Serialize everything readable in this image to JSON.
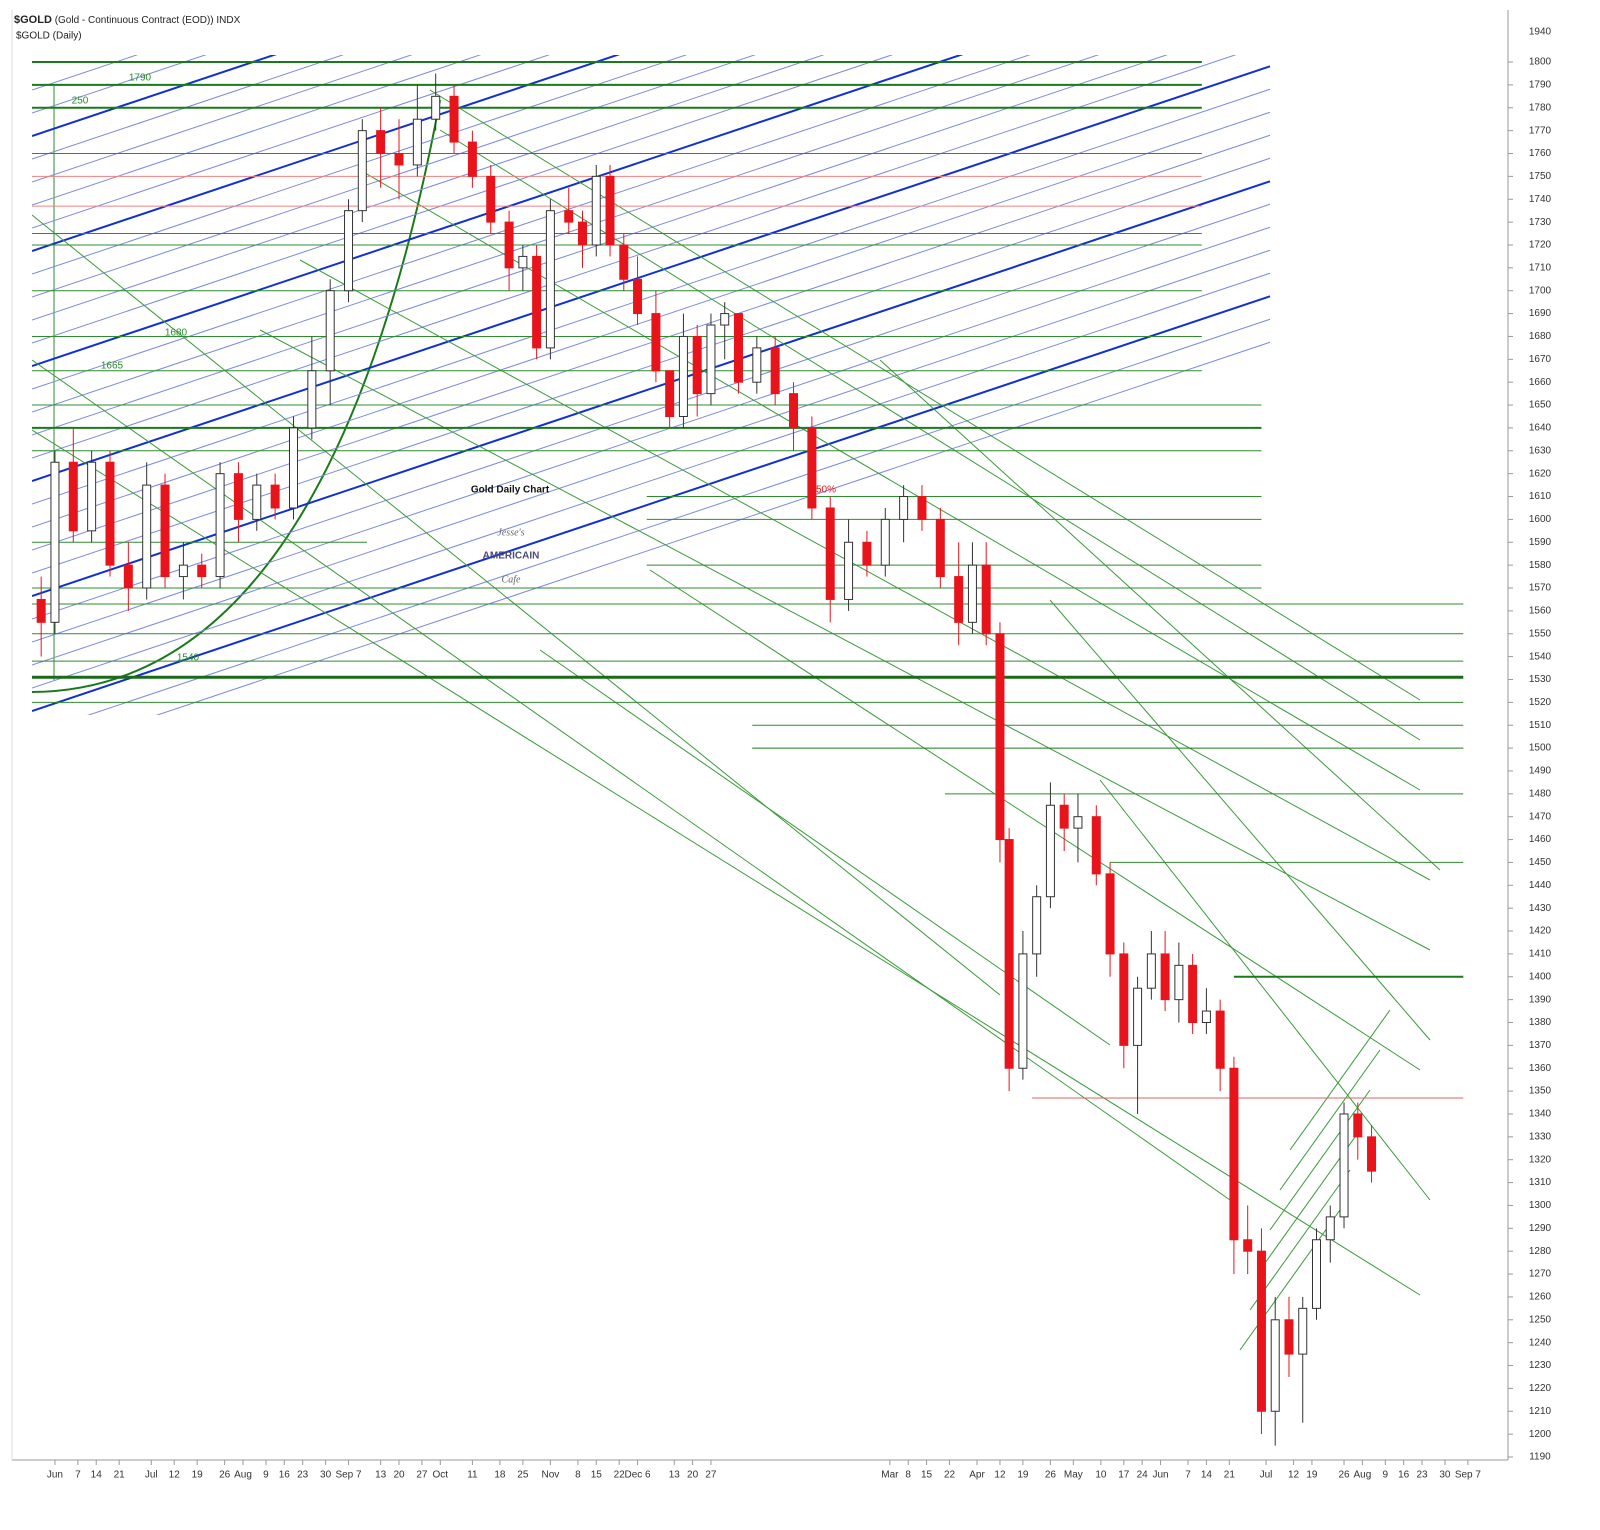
{
  "chart_data": {
    "type": "candlestick",
    "title": "$GOLD",
    "subtitle": "(Gold - Continuous Contract (EOD)) INDX",
    "series_label": "$GOLD (Daily)",
    "annotation": "Gold Daily Chart",
    "logo": {
      "top": "Jesse's",
      "middle": "AMERICAIN",
      "bottom": "Cafe"
    },
    "axis_top_label": "1940",
    "text_labels": [
      "1790",
      "250",
      "1680",
      "1665",
      "1540",
      "50%"
    ],
    "ylim": [
      1190,
      1820
    ],
    "yticks": [
      1190,
      1200,
      1210,
      1220,
      1230,
      1240,
      1250,
      1260,
      1270,
      1280,
      1290,
      1300,
      1310,
      1320,
      1330,
      1340,
      1350,
      1360,
      1370,
      1380,
      1390,
      1400,
      1410,
      1420,
      1430,
      1440,
      1450,
      1460,
      1470,
      1480,
      1490,
      1500,
      1510,
      1520,
      1530,
      1540,
      1550,
      1560,
      1570,
      1580,
      1590,
      1600,
      1610,
      1620,
      1630,
      1640,
      1650,
      1660,
      1670,
      1680,
      1690,
      1700,
      1710,
      1720,
      1730,
      1740,
      1750,
      1760,
      1770,
      1780,
      1790,
      1800
    ],
    "xlim": [
      0,
      320
    ],
    "xticks": [
      {
        "value": 5,
        "label": "Jun"
      },
      {
        "value": 10,
        "label": "7"
      },
      {
        "value": 14,
        "label": "14"
      },
      {
        "value": 19,
        "label": "21"
      },
      {
        "value": 26,
        "label": "Jul"
      },
      {
        "value": 31,
        "label": "12"
      },
      {
        "value": 36,
        "label": "19"
      },
      {
        "value": 42,
        "label": "26"
      },
      {
        "value": 46,
        "label": "Aug"
      },
      {
        "value": 51,
        "label": "9"
      },
      {
        "value": 55,
        "label": "16"
      },
      {
        "value": 59,
        "label": "23"
      },
      {
        "value": 64,
        "label": "30"
      },
      {
        "value": 69,
        "label": "Sep 7"
      },
      {
        "value": 76,
        "label": "13"
      },
      {
        "value": 80,
        "label": "20"
      },
      {
        "value": 85,
        "label": "27"
      },
      {
        "value": 89,
        "label": "Oct"
      },
      {
        "value": 96,
        "label": "11"
      },
      {
        "value": 102,
        "label": "18"
      },
      {
        "value": 107,
        "label": "25"
      },
      {
        "value": 113,
        "label": "Nov"
      },
      {
        "value": 119,
        "label": "8"
      },
      {
        "value": 123,
        "label": "15"
      },
      {
        "value": 128,
        "label": "22"
      },
      {
        "value": 132,
        "label": "Dec 6"
      },
      {
        "value": 140,
        "label": "13"
      },
      {
        "value": 144,
        "label": "20"
      },
      {
        "value": 148,
        "label": "27"
      },
      {
        "value": 187,
        "label": "Mar"
      },
      {
        "value": 191,
        "label": "8"
      },
      {
        "value": 195,
        "label": "15"
      },
      {
        "value": 200,
        "label": "22"
      },
      {
        "value": 206,
        "label": "Apr"
      },
      {
        "value": 211,
        "label": "12"
      },
      {
        "value": 216,
        "label": "19"
      },
      {
        "value": 222,
        "label": "26"
      },
      {
        "value": 227,
        "label": "May"
      },
      {
        "value": 233,
        "label": "10"
      },
      {
        "value": 238,
        "label": "17"
      },
      {
        "value": 242,
        "label": "24"
      },
      {
        "value": 246,
        "label": "Jun"
      },
      {
        "value": 252,
        "label": "7"
      },
      {
        "value": 256,
        "label": "14"
      },
      {
        "value": 261,
        "label": "21"
      },
      {
        "value": 269,
        "label": "Jul"
      },
      {
        "value": 275,
        "label": "12"
      },
      {
        "value": 279,
        "label": "19"
      },
      {
        "value": 286,
        "label": "26"
      },
      {
        "value": 290,
        "label": "Aug"
      },
      {
        "value": 295,
        "label": "9"
      },
      {
        "value": 299,
        "label": "16"
      },
      {
        "value": 303,
        "label": "23"
      },
      {
        "value": 308,
        "label": "30"
      },
      {
        "value": 313,
        "label": "Sep 7"
      }
    ],
    "up_color": "#ffffff",
    "down_color": "#e8141c",
    "candles": {
      "x": [
        2,
        5,
        9,
        13,
        17,
        21,
        25,
        29,
        33,
        37,
        41,
        45,
        49,
        53,
        57,
        61,
        65,
        69,
        72,
        76,
        80,
        84,
        88,
        92,
        96,
        100,
        104,
        107,
        110,
        113,
        117,
        120,
        123,
        126,
        129,
        132,
        136,
        139,
        142,
        145,
        148,
        151,
        154,
        158,
        162,
        166,
        170,
        174,
        178,
        182,
        186,
        190,
        194,
        198,
        202,
        205,
        208,
        211,
        213,
        216,
        219,
        222,
        225,
        228,
        232,
        235,
        238,
        241,
        244,
        247,
        250,
        253,
        256,
        259,
        262,
        265,
        268,
        271,
        274,
        277,
        280,
        283,
        286,
        289,
        292
      ],
      "open": [
        1565,
        1555,
        1625,
        1595,
        1625,
        1580,
        1570,
        1615,
        1575,
        1580,
        1575,
        1620,
        1600,
        1615,
        1605,
        1640,
        1665,
        1700,
        1735,
        1770,
        1760,
        1755,
        1775,
        1785,
        1765,
        1750,
        1730,
        1710,
        1715,
        1675,
        1735,
        1730,
        1720,
        1750,
        1720,
        1705,
        1690,
        1665,
        1645,
        1680,
        1655,
        1685,
        1690,
        1660,
        1675,
        1655,
        1640,
        1605,
        1565,
        1590,
        1580,
        1600,
        1610,
        1600,
        1575,
        1555,
        1580,
        1550,
        1460,
        1360,
        1410,
        1435,
        1475,
        1465,
        1470,
        1445,
        1410,
        1370,
        1395,
        1410,
        1390,
        1405,
        1380,
        1385,
        1360,
        1285,
        1280,
        1210,
        1250,
        1235,
        1255,
        1285,
        1295,
        1340,
        1330
      ],
      "high": [
        1575,
        1630,
        1640,
        1630,
        1630,
        1590,
        1625,
        1620,
        1590,
        1585,
        1625,
        1625,
        1620,
        1620,
        1645,
        1680,
        1705,
        1740,
        1775,
        1780,
        1775,
        1790,
        1795,
        1790,
        1770,
        1755,
        1735,
        1720,
        1720,
        1740,
        1745,
        1735,
        1755,
        1755,
        1725,
        1715,
        1700,
        1665,
        1690,
        1685,
        1690,
        1695,
        1690,
        1680,
        1680,
        1660,
        1645,
        1610,
        1600,
        1595,
        1605,
        1615,
        1615,
        1605,
        1590,
        1590,
        1590,
        1555,
        1465,
        1420,
        1440,
        1485,
        1480,
        1480,
        1475,
        1450,
        1415,
        1400,
        1420,
        1420,
        1415,
        1410,
        1395,
        1390,
        1365,
        1300,
        1290,
        1260,
        1260,
        1260,
        1290,
        1300,
        1345,
        1345,
        1335
      ],
      "low": [
        1540,
        1550,
        1590,
        1590,
        1575,
        1560,
        1565,
        1570,
        1565,
        1570,
        1570,
        1590,
        1595,
        1600,
        1600,
        1635,
        1650,
        1695,
        1730,
        1745,
        1740,
        1750,
        1770,
        1760,
        1745,
        1725,
        1700,
        1700,
        1670,
        1670,
        1725,
        1710,
        1715,
        1715,
        1700,
        1685,
        1660,
        1640,
        1640,
        1645,
        1650,
        1670,
        1655,
        1655,
        1650,
        1630,
        1600,
        1555,
        1560,
        1575,
        1575,
        1590,
        1595,
        1570,
        1545,
        1550,
        1545,
        1450,
        1350,
        1355,
        1400,
        1430,
        1455,
        1450,
        1440,
        1400,
        1360,
        1340,
        1390,
        1385,
        1380,
        1375,
        1375,
        1350,
        1270,
        1270,
        1200,
        1195,
        1225,
        1205,
        1250,
        1275,
        1290,
        1320,
        1310
      ],
      "close": [
        1555,
        1625,
        1595,
        1625,
        1580,
        1570,
        1615,
        1575,
        1580,
        1575,
        1620,
        1600,
        1615,
        1605,
        1640,
        1665,
        1700,
        1735,
        1770,
        1760,
        1755,
        1775,
        1785,
        1765,
        1750,
        1730,
        1710,
        1715,
        1675,
        1735,
        1730,
        1720,
        1750,
        1720,
        1705,
        1690,
        1665,
        1645,
        1680,
        1655,
        1685,
        1690,
        1660,
        1675,
        1655,
        1640,
        1605,
        1565,
        1590,
        1580,
        1600,
        1610,
        1600,
        1575,
        1555,
        1580,
        1550,
        1460,
        1360,
        1410,
        1435,
        1475,
        1465,
        1470,
        1445,
        1410,
        1370,
        1395,
        1410,
        1390,
        1405,
        1380,
        1385,
        1360,
        1285,
        1280,
        1210,
        1250,
        1235,
        1255,
        1285,
        1295,
        1340,
        1330,
        1315
      ]
    },
    "levels": [
      {
        "value": 1800,
        "from": 0,
        "to": 255,
        "color": "#1a7a1a",
        "width": 2
      },
      {
        "value": 1790,
        "from": 0,
        "to": 255,
        "color": "#1a7a1a",
        "width": 2
      },
      {
        "value": 1780,
        "from": 0,
        "to": 255,
        "color": "#1a7a1a",
        "width": 2
      },
      {
        "value": 1760,
        "from": 0,
        "to": 255,
        "color": "#2e8b2e",
        "width": 1
      },
      {
        "value": 1750,
        "from": 0,
        "to": 255,
        "color": "#f08080",
        "width": 1
      },
      {
        "value": 1737,
        "from": 0,
        "to": 255,
        "color": "#f08080",
        "width": 1
      },
      {
        "value": 1725,
        "from": 0,
        "to": 255,
        "color": "#2e8b2e",
        "width": 1
      },
      {
        "value": 1720,
        "from": 0,
        "to": 255,
        "color": "#2e8b2e",
        "width": 1
      },
      {
        "value": 1700,
        "from": 0,
        "to": 255,
        "color": "#2e8b2e",
        "width": 1
      },
      {
        "value": 1680,
        "from": 0,
        "to": 255,
        "color": "#2e8b2e",
        "width": 1
      },
      {
        "value": 1665,
        "from": 0,
        "to": 255,
        "color": "#2e8b2e",
        "width": 1
      },
      {
        "value": 1650,
        "from": 0,
        "to": 268,
        "color": "#2e8b2e",
        "width": 1
      },
      {
        "value": 1640,
        "from": 0,
        "to": 268,
        "color": "#1a7a1a",
        "width": 2
      },
      {
        "value": 1630,
        "from": 0,
        "to": 268,
        "color": "#2e8b2e",
        "width": 1
      },
      {
        "value": 1610,
        "from": 134,
        "to": 268,
        "color": "#2e8b2e",
        "width": 1
      },
      {
        "value": 1600,
        "from": 134,
        "to": 268,
        "color": "#2e8b2e",
        "width": 1
      },
      {
        "value": 1590,
        "from": 0,
        "to": 73,
        "color": "#2e8b2e",
        "width": 1
      },
      {
        "value": 1580,
        "from": 134,
        "to": 268,
        "color": "#2e8b2e",
        "width": 1
      },
      {
        "value": 1570,
        "from": 0,
        "to": 268,
        "color": "#2e8b2e",
        "width": 1
      },
      {
        "value": 1563,
        "from": 0,
        "to": 312,
        "color": "#2e8b2e",
        "width": 1
      },
      {
        "value": 1550,
        "from": 0,
        "to": 312,
        "color": "#2e8b2e",
        "width": 1
      },
      {
        "value": 1538,
        "from": 0,
        "to": 312,
        "color": "#2e8b2e",
        "width": 1
      },
      {
        "value": 1531,
        "from": 0,
        "to": 312,
        "color": "#1a6a1a",
        "width": 3
      },
      {
        "value": 1520,
        "from": 0,
        "to": 312,
        "color": "#2e8b2e",
        "width": 1
      },
      {
        "value": 1510,
        "from": 157,
        "to": 312,
        "color": "#2e8b2e",
        "width": 1
      },
      {
        "value": 1500,
        "from": 157,
        "to": 312,
        "color": "#1a7a1a",
        "width": 1
      },
      {
        "value": 1480,
        "from": 199,
        "to": 312,
        "color": "#2e8b2e",
        "width": 1
      },
      {
        "value": 1450,
        "from": 235,
        "to": 312,
        "color": "#2e8b2e",
        "width": 1
      },
      {
        "value": 1400,
        "from": 262,
        "to": 312,
        "color": "#1a7a1a",
        "width": 2
      },
      {
        "value": 1347,
        "from": 218,
        "to": 312,
        "color": "#e06060",
        "width": 1
      }
    ]
  }
}
